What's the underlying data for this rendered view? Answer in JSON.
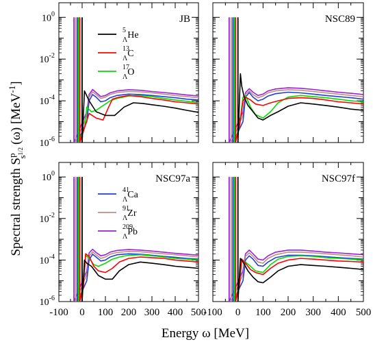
{
  "figure": {
    "ylabel": "Spectral strength S",
    "ylabel_sup": "p",
    "ylabel_sub": "s",
    "ylabel_subsub": "1/2",
    "ylabel_tail": "(ω) [MeV",
    "ylabel_unit_exp": "-1",
    "ylabel_close": "]",
    "xlabel": "Energy ω  [MeV]"
  },
  "chart_data": [
    {
      "type": "line",
      "panel_label": "JB",
      "yscale": "log",
      "xlim": [
        -100,
        500
      ],
      "ylim": [
        1e-06,
        5
      ],
      "x_ticks": [],
      "y_tick_labels": [
        {
          "base": "10",
          "exp": "0"
        },
        {
          "base": "10",
          "exp": "-2"
        },
        {
          "base": "10",
          "exp": "-4"
        },
        {
          "base": "10",
          "exp": "-6"
        }
      ],
      "legend": [
        {
          "pre": "5",
          "sub": "Λ",
          "name": "He",
          "series": "He5"
        },
        {
          "pre": "13",
          "sub": "Λ",
          "name": "C",
          "series": "C13"
        },
        {
          "pre": "17",
          "sub": "Λ",
          "name": "O",
          "series": "O17"
        }
      ],
      "series": [
        {
          "key": "He5",
          "color": "#000000",
          "peak": 0,
          "x": [
            10,
            30,
            60,
            100,
            140,
            180,
            220,
            260,
            300,
            350,
            400,
            450,
            500
          ],
          "y": [
            0.0003,
            0.0001,
            3e-05,
            2e-05,
            2e-05,
            5e-05,
            8e-05,
            7.5e-05,
            6.5e-05,
            5.5e-05,
            4.5e-05,
            3.5e-05,
            2.8e-05
          ]
        },
        {
          "key": "C13",
          "color": "#ff0000",
          "peak": -10,
          "x": [
            10,
            30,
            60,
            90,
            110,
            130,
            160,
            200,
            250,
            300,
            350,
            400,
            450,
            500
          ],
          "y": [
            5e-06,
            2.5e-05,
            1.5e-05,
            1.2e-05,
            4e-05,
            0.00012,
            0.00015,
            0.00018,
            0.00016,
            0.00013,
            0.00011,
            9e-05,
            8e-05,
            7e-05
          ]
        },
        {
          "key": "O17",
          "color": "#00dd00",
          "peak": -15,
          "x": [
            10,
            20,
            40,
            60,
            80,
            100,
            120,
            150,
            200,
            250,
            300,
            350,
            400,
            450,
            500
          ],
          "y": [
            5e-06,
            5e-05,
            3e-05,
            3.5e-05,
            5e-05,
            7e-05,
            0.0001,
            0.00013,
            0.00017,
            0.00018,
            0.00016,
            0.00013,
            0.00011,
            9.5e-05,
            8e-05
          ]
        },
        {
          "key": "Ca41",
          "color": "#1f3fd6",
          "peak": -20,
          "x": [
            20,
            30,
            45,
            60,
            80,
            100,
            120,
            150,
            200,
            250,
            300,
            350,
            400,
            450,
            500
          ],
          "y": [
            1e-05,
            0.0001,
            0.0002,
            0.00015,
            9e-05,
            0.0001,
            0.00014,
            0.00018,
            0.00021,
            0.0002,
            0.00018,
            0.00016,
            0.00014,
            0.00012,
            0.00011
          ]
        },
        {
          "key": "Zr91",
          "color": "#c08c84",
          "peak": -27,
          "x": [
            20,
            30,
            45,
            60,
            80,
            100,
            120,
            150,
            200,
            250,
            300,
            350,
            400,
            450,
            500
          ],
          "y": [
            2e-05,
            0.00015,
            0.00027,
            0.0002,
            0.00013,
            0.00015,
            0.0002,
            0.00025,
            0.00028,
            0.00027,
            0.00024,
            0.00021,
            0.00018,
            0.00016,
            0.00014
          ]
        },
        {
          "key": "Pb209",
          "color": "#9b21d6",
          "peak": -35,
          "x": [
            20,
            30,
            45,
            60,
            80,
            100,
            120,
            150,
            200,
            250,
            300,
            350,
            400,
            450,
            500
          ],
          "y": [
            3e-05,
            0.0002,
            0.00035,
            0.00025,
            0.00016,
            0.00018,
            0.00024,
            0.0003,
            0.00034,
            0.00032,
            0.00028,
            0.00025,
            0.00022,
            0.00019,
            0.00017
          ]
        }
      ]
    },
    {
      "type": "line",
      "panel_label": "NSC89",
      "yscale": "log",
      "xlim": [
        -100,
        500
      ],
      "ylim": [
        1e-06,
        5
      ],
      "x_ticks": [],
      "y_tick_labels": [],
      "legend": [],
      "series": [
        {
          "key": "He5",
          "color": "#000000",
          "peak": 0,
          "x": [
            10,
            15,
            25,
            40,
            60,
            80,
            100,
            130,
            160,
            200,
            250,
            300,
            350,
            400,
            450,
            500
          ],
          "y": [
            0.002,
            0.0005,
            0.00015,
            6e-05,
            3e-05,
            1.5e-05,
            1.2e-05,
            2e-05,
            3e-05,
            5.5e-05,
            8e-05,
            7e-05,
            6e-05,
            5e-05,
            4e-05,
            3.5e-05
          ]
        },
        {
          "key": "C13",
          "color": "#ff0000",
          "peak": -10,
          "x": [
            5,
            20,
            30,
            50,
            70,
            100,
            130,
            160,
            200,
            250,
            300,
            350,
            400,
            450,
            500
          ],
          "y": [
            5e-06,
            0.0001,
            0.00015,
            0.00011,
            7e-05,
            6e-05,
            8e-05,
            0.0001,
            0.00013,
            0.00014,
            0.00013,
            0.00011,
            9e-05,
            8e-05,
            7e-05
          ]
        },
        {
          "key": "O17",
          "color": "#00dd00",
          "peak": -15,
          "x": [
            5,
            20,
            30,
            50,
            70,
            100,
            130,
            160,
            200,
            250,
            300,
            350,
            400,
            450,
            500
          ],
          "y": [
            5e-06,
            0.00015,
            0.00018,
            5e-05,
            2.2e-05,
            1.5e-05,
            3e-05,
            8e-05,
            0.00015,
            0.00018,
            0.00016,
            0.00014,
            0.00012,
            0.0001,
            9e-05
          ]
        },
        {
          "key": "Ca41",
          "color": "#1f3fd6",
          "peak": -20,
          "x": [
            20,
            30,
            45,
            60,
            80,
            100,
            120,
            150,
            200,
            250,
            300,
            350,
            400,
            450,
            500
          ],
          "y": [
            1e-05,
            0.00015,
            0.00025,
            0.00015,
            0.0001,
            0.00012,
            0.00017,
            0.00022,
            0.00026,
            0.00024,
            0.00021,
            0.00018,
            0.00016,
            0.00014,
            0.00012
          ]
        },
        {
          "key": "Zr91",
          "color": "#c08c84",
          "peak": -27,
          "x": [
            20,
            30,
            45,
            60,
            80,
            100,
            120,
            150,
            200,
            250,
            300,
            350,
            400,
            450,
            500
          ],
          "y": [
            2e-05,
            0.0002,
            0.0003,
            0.0002,
            0.00014,
            0.00017,
            0.00024,
            0.0003,
            0.00034,
            0.00032,
            0.00028,
            0.00024,
            0.00021,
            0.00018,
            0.00016
          ]
        },
        {
          "key": "Pb209",
          "color": "#9b21d6",
          "peak": -35,
          "x": [
            20,
            30,
            45,
            60,
            80,
            100,
            120,
            150,
            200,
            250,
            300,
            350,
            400,
            450,
            500
          ],
          "y": [
            3e-05,
            0.00025,
            0.00038,
            0.00026,
            0.00018,
            0.00021,
            0.0003,
            0.00037,
            0.00042,
            0.0004,
            0.00035,
            0.0003,
            0.00026,
            0.00023,
            0.0002
          ]
        }
      ]
    },
    {
      "type": "line",
      "panel_label": "NSC97a",
      "yscale": "log",
      "xlim": [
        -100,
        500
      ],
      "ylim": [
        1e-06,
        5
      ],
      "x_ticks": [
        "-100",
        "0",
        "100",
        "200",
        "300",
        "400",
        "500"
      ],
      "y_tick_labels": [
        {
          "base": "10",
          "exp": "0"
        },
        {
          "base": "10",
          "exp": "-2"
        },
        {
          "base": "10",
          "exp": "-4"
        },
        {
          "base": "10",
          "exp": "-6"
        }
      ],
      "legend": [
        {
          "pre": "41",
          "sub": "Λ",
          "name": "Ca",
          "series": "Ca41"
        },
        {
          "pre": "91",
          "sub": "Λ",
          "name": "Zr",
          "series": "Zr91"
        },
        {
          "pre": "209",
          "sub": "Λ",
          "name": "Pb",
          "series": "Pb209"
        }
      ],
      "series": [
        {
          "key": "He5",
          "color": "#000000",
          "peak": 0,
          "x": [
            10,
            20,
            40,
            70,
            100,
            130,
            160,
            200,
            250,
            300,
            350,
            400,
            450,
            500
          ],
          "y": [
            0.0001,
            7e-05,
            5e-05,
            1.8e-05,
            1.2e-05,
            1.2e-05,
            3e-05,
            6e-05,
            8e-05,
            7e-05,
            6e-05,
            5e-05,
            4.5e-05,
            4e-05
          ]
        },
        {
          "key": "C13",
          "color": "#ff0000",
          "peak": -10,
          "x": [
            5,
            15,
            30,
            50,
            70,
            100,
            130,
            160,
            200,
            250,
            300,
            350,
            400,
            450,
            500
          ],
          "y": [
            5e-06,
            0.0002,
            0.00015,
            5e-05,
            3e-05,
            2.5e-05,
            4e-05,
            8e-05,
            0.00012,
            0.00014,
            0.00013,
            0.00012,
            0.0001,
            9e-05,
            8e-05
          ]
        },
        {
          "key": "O17",
          "color": "#00dd00",
          "peak": -15,
          "x": [
            5,
            15,
            30,
            50,
            70,
            100,
            130,
            160,
            200,
            250,
            300,
            350,
            400,
            450,
            500
          ],
          "y": [
            5e-06,
            0.00017,
            0.00012,
            6e-05,
            5e-05,
            7e-05,
            0.00011,
            0.00014,
            0.00017,
            0.00018,
            0.00016,
            0.00014,
            0.00012,
            0.00011,
            0.0001
          ]
        },
        {
          "key": "Ca41",
          "color": "#1f3fd6",
          "peak": -20,
          "x": [
            20,
            30,
            45,
            60,
            80,
            100,
            120,
            150,
            200,
            250,
            300,
            350,
            400,
            450,
            500
          ],
          "y": [
            1e-05,
            0.0001,
            0.00019,
            0.00014,
            9e-05,
            0.0001,
            0.00014,
            0.00018,
            0.0002,
            0.00019,
            0.00017,
            0.00015,
            0.000135,
            0.00012,
            0.00011
          ]
        },
        {
          "key": "Zr91",
          "color": "#c08c84",
          "peak": -27,
          "x": [
            20,
            30,
            45,
            60,
            80,
            100,
            120,
            150,
            200,
            250,
            300,
            350,
            400,
            450,
            500
          ],
          "y": [
            2e-05,
            0.00015,
            0.00025,
            0.00018,
            0.00012,
            0.00014,
            0.00019,
            0.00023,
            0.00026,
            0.00025,
            0.00022,
            0.0002,
            0.00018,
            0.00016,
            0.00014
          ]
        },
        {
          "key": "Pb209",
          "color": "#9b21d6",
          "peak": -35,
          "x": [
            20,
            30,
            45,
            60,
            80,
            100,
            120,
            150,
            200,
            250,
            300,
            350,
            400,
            450,
            500
          ],
          "y": [
            3e-05,
            0.00022,
            0.00033,
            0.00023,
            0.00016,
            0.00018,
            0.00024,
            0.00029,
            0.00032,
            0.0003,
            0.00027,
            0.00024,
            0.00021,
            0.00019,
            0.00017
          ]
        }
      ]
    },
    {
      "type": "line",
      "panel_label": "NSC97f",
      "yscale": "log",
      "xlim": [
        -100,
        500
      ],
      "ylim": [
        1e-06,
        5
      ],
      "x_ticks": [
        "-100",
        "0",
        "100",
        "200",
        "300",
        "400",
        "500"
      ],
      "y_tick_labels": [],
      "legend": [],
      "series": [
        {
          "key": "He5",
          "color": "#000000",
          "peak": 0,
          "x": [
            10,
            20,
            40,
            60,
            80,
            100,
            130,
            160,
            200,
            250,
            300,
            350,
            400,
            450,
            500
          ],
          "y": [
            0.00012,
            8e-05,
            3e-05,
            1.5e-05,
            9e-06,
            8e-06,
            1.5e-05,
            3e-05,
            5e-05,
            6e-05,
            5.5e-05,
            5e-05,
            4.5e-05,
            4e-05,
            3.5e-05
          ]
        },
        {
          "key": "C13",
          "color": "#ff0000",
          "peak": -10,
          "x": [
            5,
            15,
            30,
            50,
            70,
            100,
            130,
            160,
            200,
            250,
            300,
            350,
            400,
            450,
            500
          ],
          "y": [
            5e-06,
            0.00011,
            7e-05,
            3.5e-05,
            2.5e-05,
            2e-05,
            4e-05,
            7e-05,
            0.0001,
            0.00012,
            0.00011,
            0.0001,
            9e-05,
            8.5e-05,
            8e-05
          ]
        },
        {
          "key": "O17",
          "color": "#00dd00",
          "peak": -15,
          "x": [
            5,
            15,
            30,
            50,
            70,
            100,
            130,
            160,
            200,
            250,
            300,
            350,
            400,
            450,
            500
          ],
          "y": [
            5e-06,
            0.0001,
            8e-05,
            5e-05,
            3e-05,
            2.5e-05,
            6e-05,
            0.00011,
            0.00015,
            0.00016,
            0.00015,
            0.00013,
            0.00012,
            0.00011,
            0.0001
          ]
        },
        {
          "key": "Ca41",
          "color": "#1f3fd6",
          "peak": -20,
          "x": [
            20,
            30,
            45,
            60,
            80,
            100,
            120,
            150,
            200,
            250,
            300,
            350,
            400,
            450,
            500
          ],
          "y": [
            1e-05,
            0.0001,
            0.00016,
            0.00011,
            5.5e-05,
            5e-05,
            8e-05,
            0.00013,
            0.00017,
            0.00017,
            0.00016,
            0.000145,
            0.00013,
            0.00012,
            0.00011
          ]
        },
        {
          "key": "Zr91",
          "color": "#c08c84",
          "peak": -27,
          "x": [
            20,
            30,
            45,
            60,
            80,
            100,
            120,
            150,
            200,
            250,
            300,
            350,
            400,
            450,
            500
          ],
          "y": [
            2e-05,
            0.00015,
            0.00022,
            0.00015,
            8e-05,
            7e-05,
            0.00012,
            0.00018,
            0.00024,
            0.00024,
            0.00022,
            0.0002,
            0.00018,
            0.00016,
            0.00014
          ]
        },
        {
          "key": "Pb209",
          "color": "#9b21d6",
          "peak": -35,
          "x": [
            20,
            30,
            45,
            60,
            80,
            100,
            120,
            150,
            200,
            250,
            300,
            350,
            400,
            450,
            500
          ],
          "y": [
            3e-05,
            0.0002,
            0.0003,
            0.0002,
            0.00011,
            0.0001,
            0.00016,
            0.00024,
            0.0003,
            0.0003,
            0.00027,
            0.00024,
            0.00022,
            0.0002,
            0.00018
          ]
        }
      ]
    }
  ]
}
